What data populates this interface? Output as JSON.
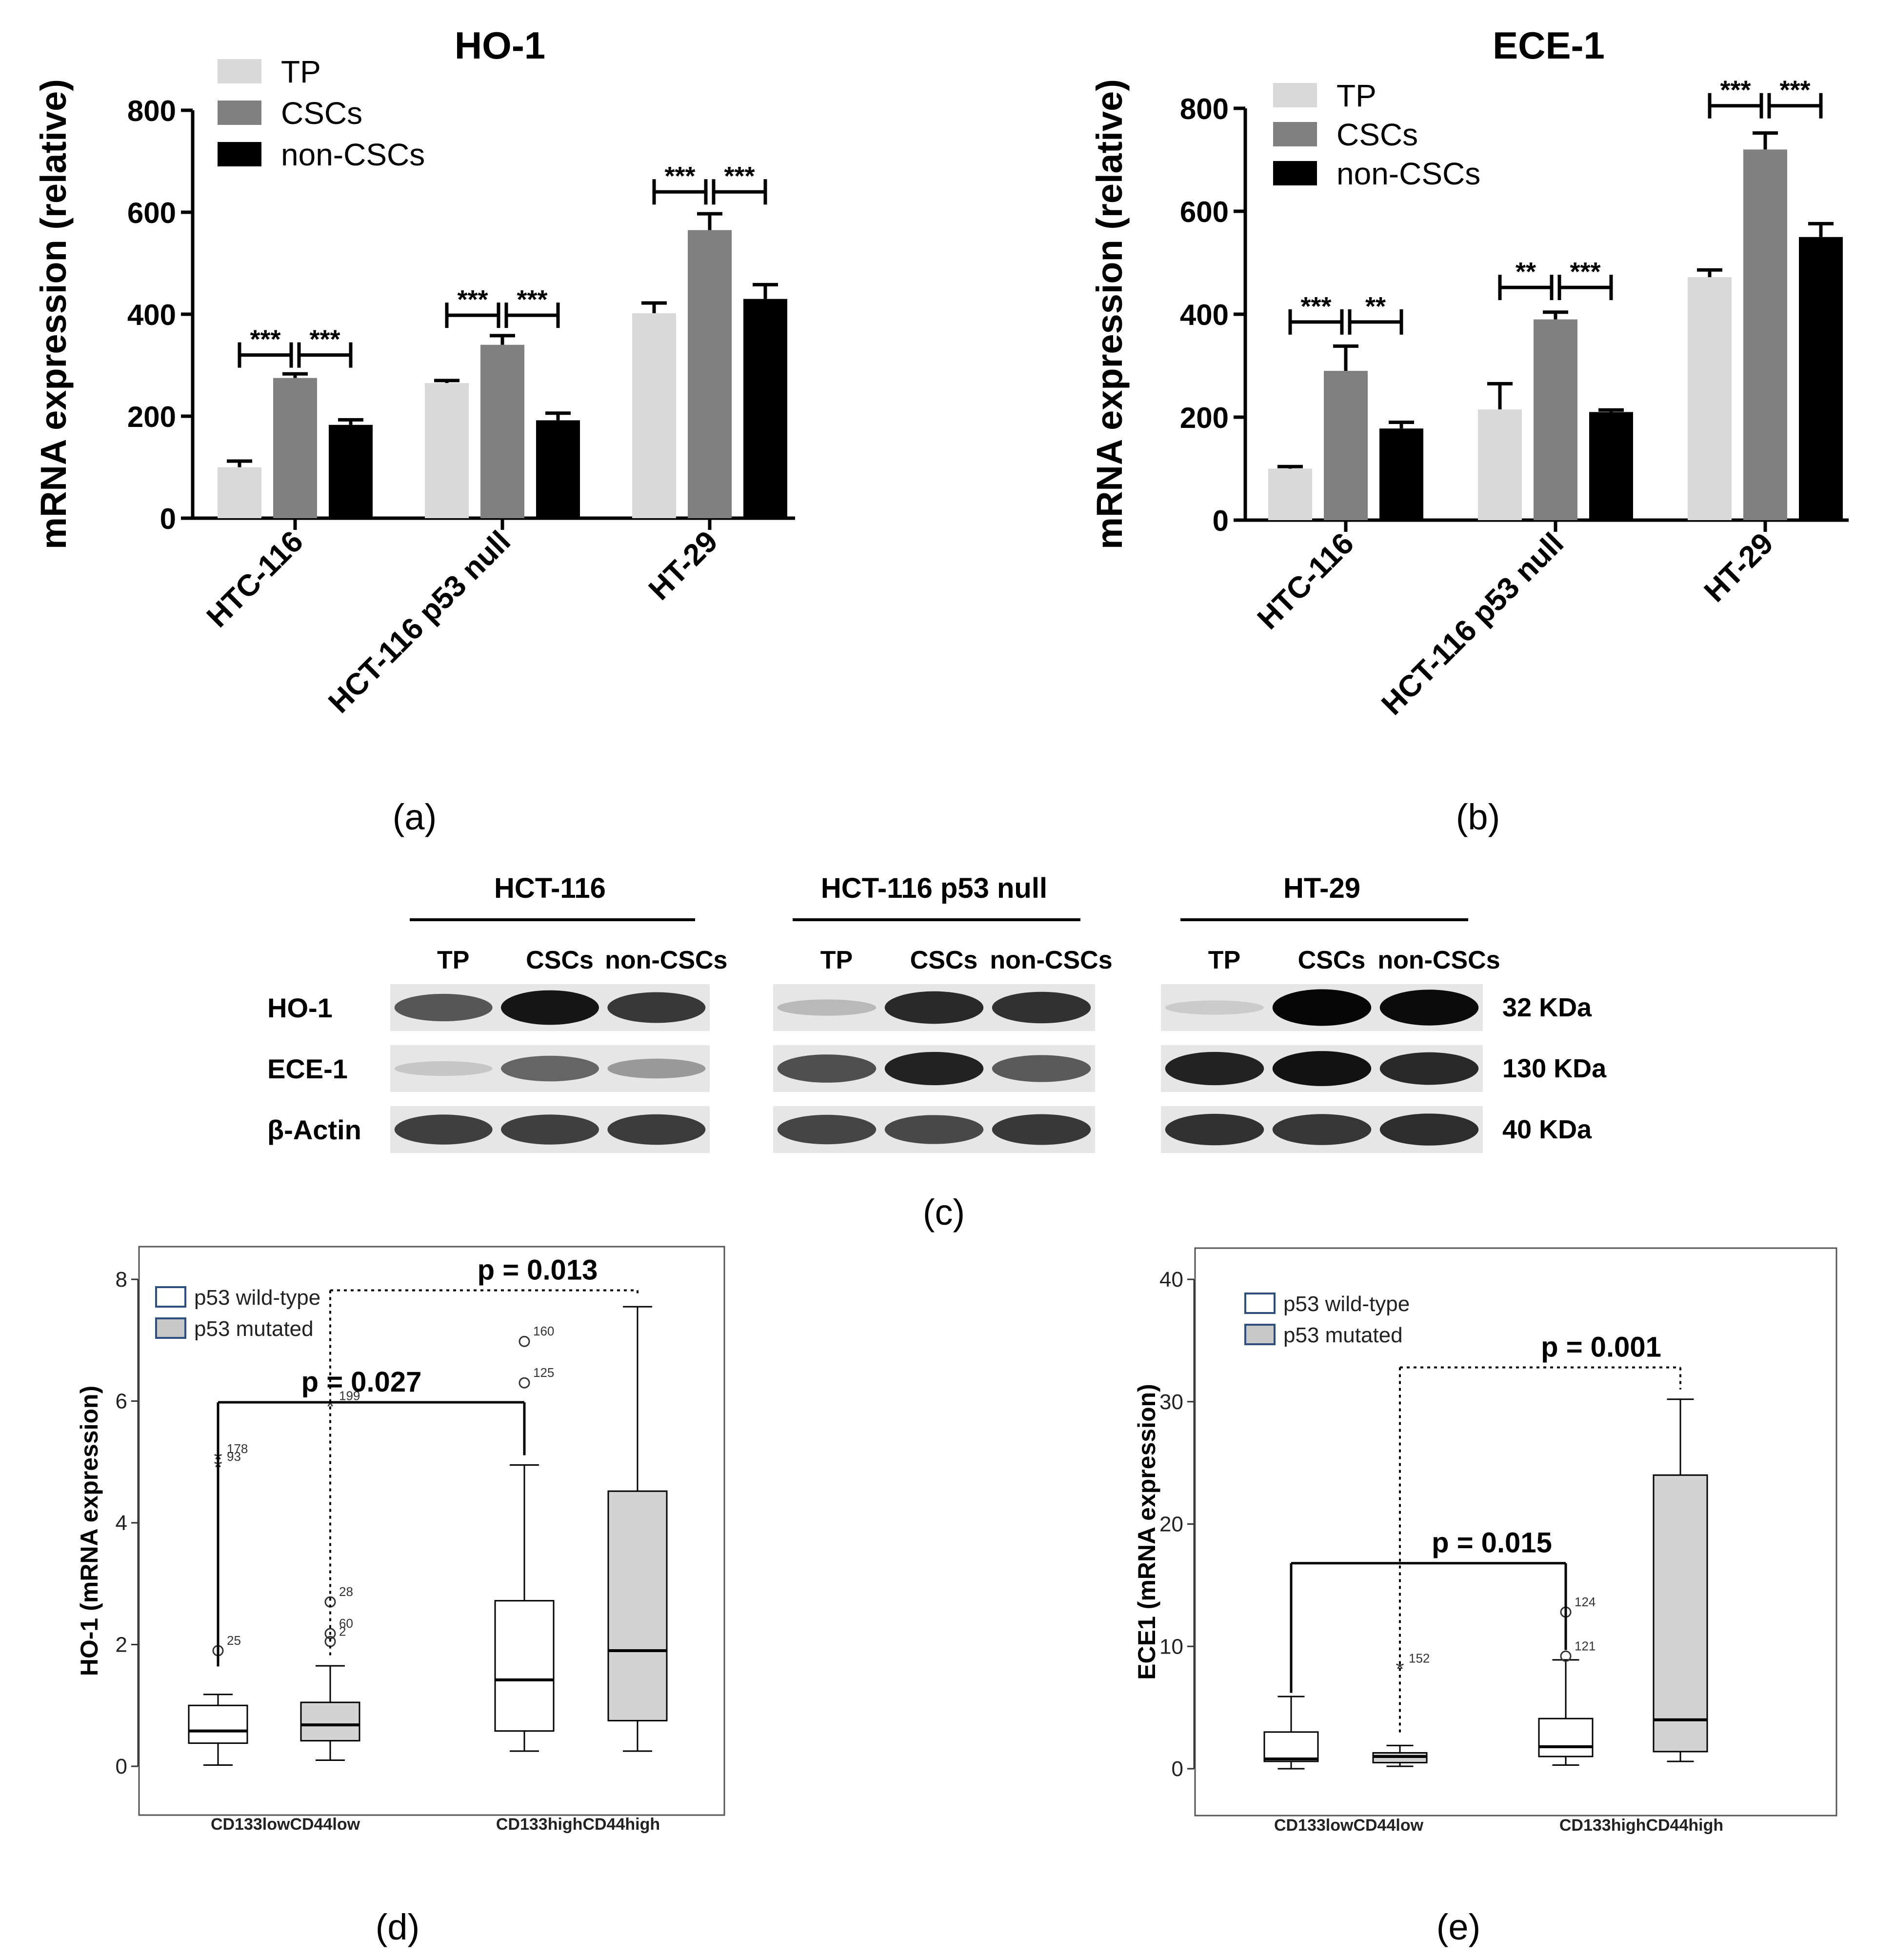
{
  "chart_data": [
    {
      "panel": "(a)",
      "type": "bar",
      "title": "HO-1",
      "ylabel": "mRNA expression (relative)",
      "ylim": [
        0,
        800
      ],
      "yticks": [
        "0",
        "200",
        "400",
        "600",
        "800"
      ],
      "categories": [
        "HTC-116",
        "HCT-116 p53 null",
        "HT-29"
      ],
      "series": [
        {
          "name": "TP",
          "values": [
            100,
            265,
            402
          ],
          "errors": [
            12,
            5,
            20
          ],
          "color": "#d9d9d9"
        },
        {
          "name": "CSCs",
          "values": [
            275,
            340,
            565
          ],
          "errors": [
            8,
            18,
            32
          ],
          "color": "#808080"
        },
        {
          "name": "non-CSCs",
          "values": [
            183,
            192,
            430
          ],
          "errors": [
            10,
            14,
            28
          ],
          "color": "#000000"
        }
      ],
      "significance": [
        {
          "group": 0,
          "left": "***",
          "right": "***",
          "y": 320
        },
        {
          "group": 1,
          "left": "***",
          "right": "***",
          "y": 398
        },
        {
          "group": 2,
          "left": "***",
          "right": "***",
          "y": 640
        }
      ],
      "legend": "top-left"
    },
    {
      "panel": "(b)",
      "type": "bar",
      "title": "ECE-1",
      "ylabel": "mRNA expression (relative)",
      "ylim": [
        0,
        800
      ],
      "yticks": [
        "0",
        "200",
        "400",
        "600",
        "800"
      ],
      "categories": [
        "HTC-116",
        "HCT-116 p53 null",
        "HT-29"
      ],
      "series": [
        {
          "name": "TP",
          "values": [
            100,
            215,
            472
          ],
          "errors": [
            4,
            50,
            14
          ],
          "color": "#d9d9d9"
        },
        {
          "name": "CSCs",
          "values": [
            290,
            390,
            720
          ],
          "errors": [
            48,
            14,
            32
          ],
          "color": "#808080"
        },
        {
          "name": "non-CSCs",
          "values": [
            178,
            210,
            550
          ],
          "errors": [
            12,
            4,
            26
          ],
          "color": "#000000"
        }
      ],
      "significance": [
        {
          "group": 0,
          "left": "***",
          "right": "**",
          "y": 385
        },
        {
          "group": 1,
          "left": "**",
          "right": "***",
          "y": 452
        },
        {
          "group": 2,
          "left": "***",
          "right": "***",
          "y": 805
        }
      ],
      "legend": "top-left"
    },
    {
      "panel": "(d)",
      "type": "box",
      "ylabel": "HO-1 (mRNA expression)",
      "ylim": [
        0,
        8
      ],
      "yticks": [
        "0",
        "2",
        "4",
        "6",
        "8"
      ],
      "categories": [
        "CD133lowCD44low",
        "CD133highCD44high"
      ],
      "legend_entries": [
        "p53 wild-type",
        "p53 mutated"
      ],
      "boxes": [
        {
          "group": 0,
          "series": "p53 wild-type",
          "min": 0.02,
          "q1": 0.38,
          "median": 0.58,
          "q3": 1.0,
          "max": 1.18
        },
        {
          "group": 0,
          "series": "p53 mutated",
          "min": 0.1,
          "q1": 0.42,
          "median": 0.68,
          "q3": 1.05,
          "max": 1.65
        },
        {
          "group": 1,
          "series": "p53 wild-type",
          "min": 0.25,
          "q1": 0.58,
          "median": 1.42,
          "q3": 2.72,
          "max": 4.95
        },
        {
          "group": 1,
          "series": "p53 mutated",
          "min": 0.25,
          "q1": 0.75,
          "median": 1.9,
          "q3": 4.52,
          "max": 7.55
        }
      ],
      "outliers": [
        {
          "box": 0,
          "y": 1.9,
          "label": "25",
          "marker": "circle"
        },
        {
          "box": 0,
          "y": 5.05,
          "label": "178",
          "marker": "star"
        },
        {
          "box": 0,
          "y": 4.92,
          "label": "93",
          "marker": "star"
        },
        {
          "box": 1,
          "y": 2.7,
          "label": "28",
          "marker": "circle"
        },
        {
          "box": 1,
          "y": 2.18,
          "label": "60",
          "marker": "circle"
        },
        {
          "box": 1,
          "y": 2.05,
          "label": "2",
          "marker": "circle"
        },
        {
          "box": 1,
          "y": 5.92,
          "label": "199",
          "marker": "star"
        },
        {
          "box": 2,
          "y": 6.98,
          "label": "160",
          "marker": "circle"
        },
        {
          "box": 2,
          "y": 6.3,
          "label": "125",
          "marker": "circle"
        }
      ],
      "comparisons": [
        {
          "label": "p = 0.027",
          "from": 0,
          "to": 2,
          "y": 5.98,
          "style": "solid"
        },
        {
          "label": "p = 0.013",
          "from": 1,
          "to": 3,
          "y": 7.82,
          "style": "dotted"
        }
      ]
    },
    {
      "panel": "(e)",
      "type": "box",
      "ylabel": "ECE1 (mRNA expression)",
      "ylim": [
        0,
        40
      ],
      "yticks": [
        "0",
        "10",
        "20",
        "30",
        "40"
      ],
      "categories": [
        "CD133lowCD44low",
        "CD133highCD44high"
      ],
      "legend_entries": [
        "p53 wild-type",
        "p53 mutated"
      ],
      "boxes": [
        {
          "group": 0,
          "series": "p53 wild-type",
          "min": 0.0,
          "q1": 0.6,
          "median": 0.8,
          "q3": 3.0,
          "max": 5.9
        },
        {
          "group": 0,
          "series": "p53 mutated",
          "min": 0.2,
          "q1": 0.5,
          "median": 1.0,
          "q3": 1.3,
          "max": 1.9
        },
        {
          "group": 1,
          "series": "p53 wild-type",
          "min": 0.3,
          "q1": 1.0,
          "median": 1.8,
          "q3": 4.1,
          "max": 8.9
        },
        {
          "group": 1,
          "series": "p53 mutated",
          "min": 0.6,
          "q1": 1.4,
          "median": 4.0,
          "q3": 24.0,
          "max": 30.2
        }
      ],
      "outliers": [
        {
          "box": 1,
          "y": 8.2,
          "label": "152",
          "marker": "star"
        },
        {
          "box": 2,
          "y": 12.8,
          "label": "124",
          "marker": "circle"
        },
        {
          "box": 2,
          "y": 9.2,
          "label": "121",
          "marker": "circle"
        }
      ],
      "comparisons": [
        {
          "label": "p = 0.015",
          "from": 0,
          "to": 2,
          "y": 16.8,
          "style": "solid"
        },
        {
          "label": "p = 0.001",
          "from": 1,
          "to": 3,
          "y": 32.8,
          "style": "dotted"
        }
      ]
    }
  ],
  "panel_labels": {
    "a": "(a)",
    "b": "(b)",
    "c": "(c)",
    "d": "(d)",
    "e": "(e)"
  },
  "western_blot": {
    "groups": [
      "HCT-116",
      "HCT-116 p53 null",
      "HT-29"
    ],
    "lanes": [
      "TP",
      "CSCs",
      "non-CSCs"
    ],
    "rows": [
      "HO-1",
      "ECE-1",
      "β-Actin"
    ],
    "sizes": [
      "32 KDa",
      "130 KDa",
      "40 KDa"
    ],
    "intensity": [
      [
        [
          0.62,
          0.9,
          0.75
        ],
        [
          0.18,
          0.82,
          0.78
        ],
        [
          0.1,
          0.98,
          0.95
        ]
      ],
      [
        [
          0.12,
          0.55,
          0.32
        ],
        [
          0.65,
          0.85,
          0.6
        ],
        [
          0.85,
          0.92,
          0.82
        ]
      ],
      [
        [
          0.72,
          0.72,
          0.74
        ],
        [
          0.7,
          0.68,
          0.75
        ],
        [
          0.78,
          0.76,
          0.8
        ]
      ]
    ]
  }
}
